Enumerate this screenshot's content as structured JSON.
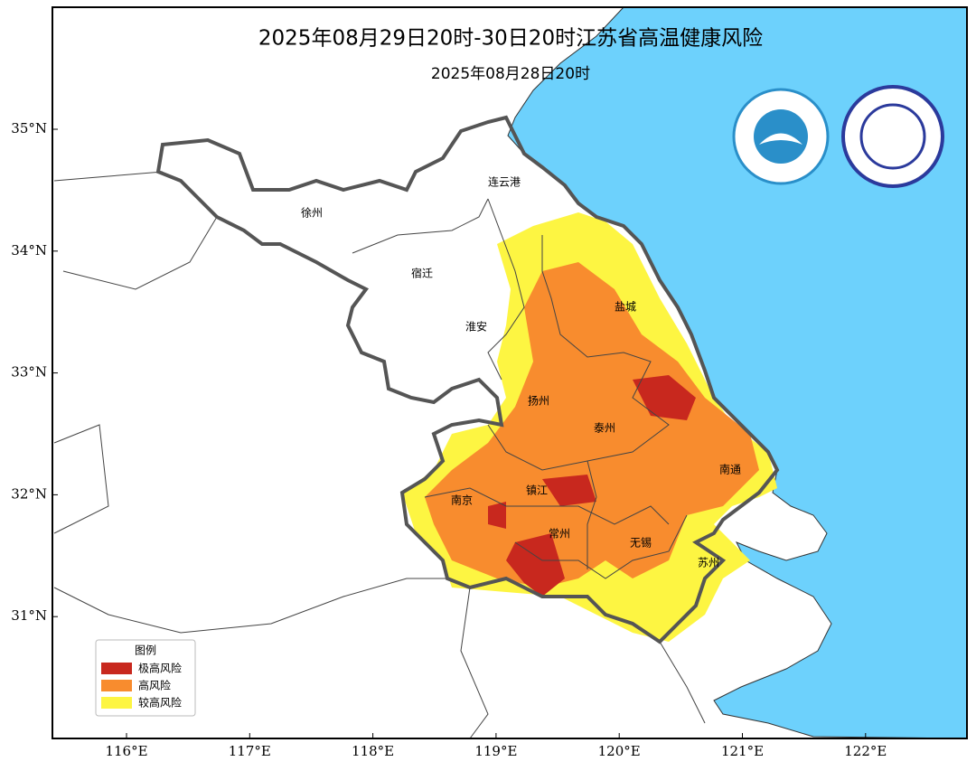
{
  "title": "2025年08月29日20时-30日20时江苏省高温健康风险",
  "subtitle": "2025年08月28日20时",
  "lon_ticks": [
    {
      "value": 116,
      "label": "116°E"
    },
    {
      "value": 117,
      "label": "117°E"
    },
    {
      "value": 118,
      "label": "118°E"
    },
    {
      "value": 119,
      "label": "119°E"
    },
    {
      "value": 120,
      "label": "120°E"
    },
    {
      "value": 121,
      "label": "121°E"
    },
    {
      "value": 122,
      "label": "122°E"
    }
  ],
  "lat_ticks": [
    {
      "value": 35,
      "label": "35°N"
    },
    {
      "value": 34,
      "label": "34°N"
    },
    {
      "value": 33,
      "label": "33°N"
    },
    {
      "value": 32,
      "label": "32°N"
    },
    {
      "value": 31,
      "label": "31°N"
    }
  ],
  "cities": [
    "连云港",
    "徐州",
    "宿迁",
    "淮安",
    "盐城",
    "扬州",
    "泰州",
    "南通",
    "南京",
    "镇江",
    "常州",
    "无锡",
    "苏州"
  ],
  "legend": {
    "title": "图例",
    "items": [
      {
        "label": "极高风险",
        "color": "#c8281e"
      },
      {
        "label": "高风险",
        "color": "#f88c2e"
      },
      {
        "label": "较高风险",
        "color": "#fdf542"
      }
    ]
  }
}
